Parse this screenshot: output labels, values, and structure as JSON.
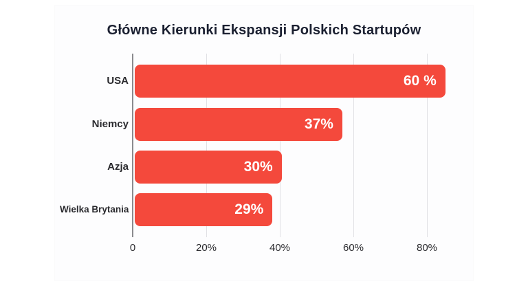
{
  "title": "Główne Kierunki Ekspansji Polskich Startupów",
  "colors": {
    "bar": "#f4493c",
    "title_text": "#1b2031",
    "axis_label_text": "#2a2a2e",
    "value_label_text": "#ffffff",
    "axis_line": "#8a8a8e",
    "gridline": "#e1e1e5",
    "background": "#ffffff"
  },
  "chart_data": {
    "type": "bar",
    "orientation": "horizontal",
    "title": "Główne Kierunki Ekspansji Polskich Startupów",
    "categories": [
      "USA",
      "Niemcy",
      "Azja",
      "Wielka Brytania"
    ],
    "values": [
      60,
      37,
      30,
      29
    ],
    "value_labels": [
      "60 %",
      "37%",
      "30%",
      "29%"
    ],
    "bar_drawn_axis_extent_percent": [
      85,
      57,
      40.5,
      38
    ],
    "x_ticks": [
      "0",
      "20%",
      "40%",
      "60%",
      "80%"
    ],
    "x_tick_values": [
      0,
      20,
      40,
      60,
      80
    ],
    "xlim": [
      0,
      88
    ],
    "xlabel": "",
    "ylabel": "",
    "grid": "vertical-gridlines",
    "legend": "none"
  }
}
